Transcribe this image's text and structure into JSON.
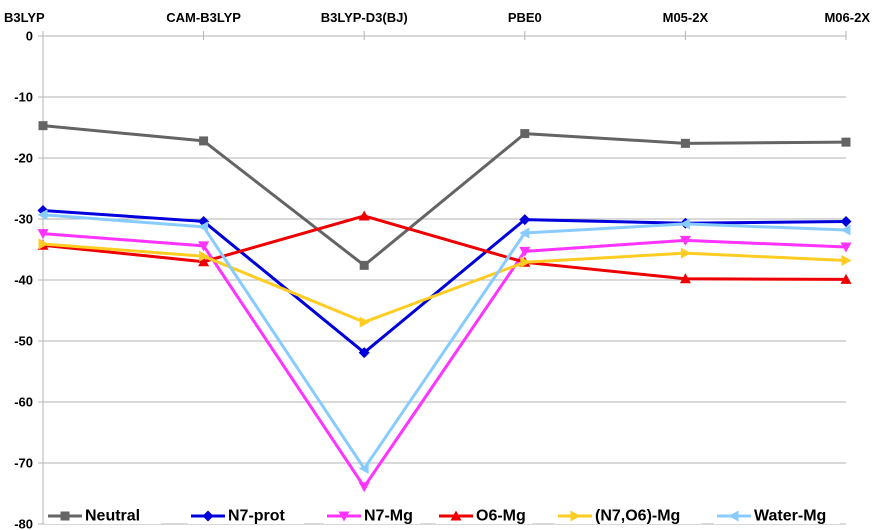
{
  "chart_data": {
    "type": "line",
    "title": "",
    "xlabel": "",
    "ylabel": "",
    "categories": [
      "B3LYP",
      "CAM-B3LYP",
      "B3LYP-D3(BJ)",
      "PBE0",
      "M05-2X",
      "M06-2X"
    ],
    "ylim": [
      -80,
      0
    ],
    "yticks": [
      0,
      -10,
      -20,
      -30,
      -40,
      -50,
      -60,
      -70,
      -80
    ],
    "x_axis_position": "top",
    "grid": true,
    "legend_position": "bottom",
    "series": [
      {
        "name": "Neutral",
        "color": "#646464",
        "marker": "square",
        "values": [
          -14.7,
          -17.2,
          -37.6,
          -16.0,
          -17.6,
          -17.4
        ]
      },
      {
        "name": "N7-prot",
        "color": "#0000dd",
        "marker": "diamond",
        "values": [
          -28.6,
          -30.4,
          -51.9,
          -30.1,
          -30.7,
          -30.4
        ]
      },
      {
        "name": "N7-Mg",
        "color": "#ff33ff",
        "marker": "triangle-down",
        "values": [
          -32.4,
          -34.4,
          -73.9,
          -35.3,
          -33.5,
          -34.6
        ]
      },
      {
        "name": "O6-Mg",
        "color": "#ee0000",
        "marker": "triangle-up",
        "values": [
          -34.3,
          -37.0,
          -29.5,
          -37.1,
          -39.8,
          -39.9
        ]
      },
      {
        "name": "(N7,O6)-Mg",
        "color": "#ffcc22",
        "marker": "triangle-right",
        "values": [
          -34.1,
          -36.1,
          -46.9,
          -37.1,
          -35.6,
          -36.8
        ]
      },
      {
        "name": "Water-Mg",
        "color": "#88ccff",
        "marker": "triangle-left",
        "values": [
          -29.3,
          -31.3,
          -70.9,
          -32.3,
          -30.8,
          -31.8
        ]
      }
    ]
  }
}
